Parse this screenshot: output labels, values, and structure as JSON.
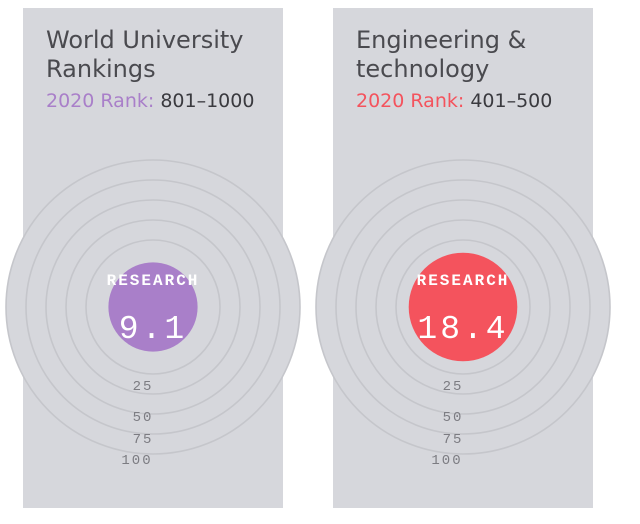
{
  "panels": [
    {
      "title_line1": "World University",
      "title_line2": "Rankings",
      "rank_label": "2020 Rank:",
      "rank_value": "801–1000",
      "accent_color": "#a97fc9",
      "metric_label": "RESEARCH",
      "metric_value": "9.1",
      "score": 9.1,
      "ticks": [
        "25",
        "50",
        "75",
        "100"
      ]
    },
    {
      "title_line1": "Engineering &",
      "title_line2": "technology",
      "rank_label": "2020 Rank:",
      "rank_value": "401–500",
      "accent_color": "#f4535d",
      "metric_label": "RESEARCH",
      "metric_value": "18.4",
      "score": 18.4,
      "ticks": [
        "25",
        "50",
        "75",
        "100"
      ]
    }
  ]
}
